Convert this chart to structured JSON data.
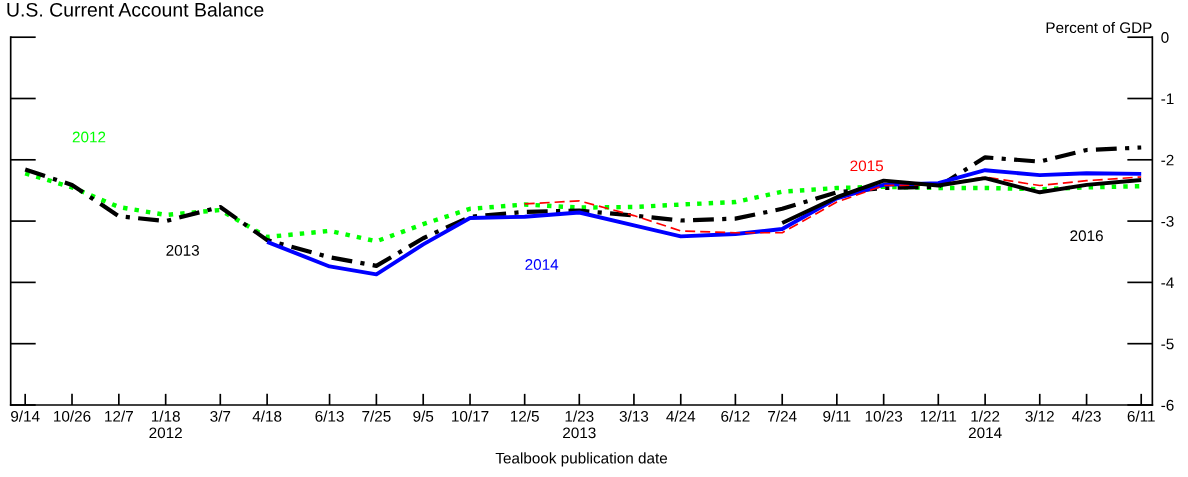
{
  "chart_data": {
    "type": "line",
    "title": "U.S. Current Account Balance",
    "ylabel": "Percent of GDP",
    "xlabel": "Tealbook publication date",
    "x": [
      "2011-09-14",
      "2011-10-26",
      "2011-12-07",
      "2012-01-18",
      "2012-03-07",
      "2012-04-18",
      "2012-06-13",
      "2012-07-25",
      "2012-09-05",
      "2012-10-17",
      "2012-12-05",
      "2013-01-23",
      "2013-03-13",
      "2013-04-24",
      "2013-06-12",
      "2013-07-24",
      "2013-09-11",
      "2013-10-23",
      "2013-12-11",
      "2014-01-22",
      "2014-03-12",
      "2014-04-23",
      "2014-06-11"
    ],
    "series": [
      {
        "name": "2012",
        "color": "#00ff00",
        "line_style": "dotted",
        "values": [
          -2.22,
          -2.45,
          -2.77,
          -2.9,
          -2.82,
          -3.26,
          -3.16,
          -3.33,
          -3.05,
          -2.8,
          -2.73,
          -2.78,
          -2.77,
          -2.73,
          -2.69,
          -2.52,
          -2.46,
          -2.44,
          -2.46,
          -2.46,
          -2.48,
          -2.45,
          -2.43
        ]
      },
      {
        "name": "2013",
        "color": "#000000",
        "line_style": "dashdot",
        "values": [
          -2.16,
          -2.41,
          -2.92,
          -3.0,
          -2.77,
          -3.31,
          -3.59,
          -3.73,
          -3.28,
          -2.93,
          -2.85,
          -2.83,
          -2.91,
          -2.99,
          -2.96,
          -2.8,
          -2.53,
          -2.46,
          -2.44,
          -1.96,
          -2.03,
          -1.84,
          -1.8
        ]
      },
      {
        "name": "2014",
        "color": "#0000ff",
        "line_style": "solid",
        "values": [
          null,
          null,
          null,
          null,
          null,
          -3.34,
          -3.74,
          -3.87,
          -3.38,
          -2.95,
          -2.93,
          -2.86,
          -3.07,
          -3.25,
          -3.21,
          -3.13,
          -2.63,
          -2.41,
          -2.38,
          -2.17,
          -2.25,
          -2.22,
          -2.23
        ]
      },
      {
        "name": "2015",
        "color": "#ff0000",
        "line_style": "dashed",
        "values": [
          null,
          null,
          null,
          null,
          null,
          null,
          null,
          null,
          null,
          null,
          -2.72,
          -2.67,
          -2.91,
          -3.16,
          -3.19,
          -3.19,
          -2.69,
          -2.42,
          -2.41,
          -2.28,
          -2.42,
          -2.34,
          -2.28
        ]
      },
      {
        "name": "2016",
        "color": "#000000",
        "line_style": "solid",
        "values": [
          null,
          null,
          null,
          null,
          null,
          null,
          null,
          null,
          null,
          null,
          null,
          null,
          null,
          null,
          null,
          -3.03,
          -2.61,
          -2.34,
          -2.42,
          -2.3,
          -2.53,
          -2.41,
          -2.33
        ]
      }
    ],
    "xlim": [
      "2011-09-01",
      "2014-06-21"
    ],
    "xticks": [
      {
        "value": "2011-09-14",
        "label": "9/14"
      },
      {
        "value": "2011-10-26",
        "label": "10/26"
      },
      {
        "value": "2011-12-07",
        "label": "12/7"
      },
      {
        "value": "2012-01-18",
        "label": "1/18\n2012"
      },
      {
        "value": "2012-03-07",
        "label": "3/7"
      },
      {
        "value": "2012-04-18",
        "label": "4/18"
      },
      {
        "value": "2012-06-13",
        "label": "6/13"
      },
      {
        "value": "2012-07-25",
        "label": "7/25"
      },
      {
        "value": "2012-09-05",
        "label": "9/5"
      },
      {
        "value": "2012-10-17",
        "label": "10/17"
      },
      {
        "value": "2012-12-05",
        "label": "12/5"
      },
      {
        "value": "2013-01-23",
        "label": "1/23\n2013"
      },
      {
        "value": "2013-03-13",
        "label": "3/13"
      },
      {
        "value": "2013-04-24",
        "label": "4/24"
      },
      {
        "value": "2013-06-12",
        "label": "6/12"
      },
      {
        "value": "2013-07-24",
        "label": "7/24"
      },
      {
        "value": "2013-09-11",
        "label": "9/11"
      },
      {
        "value": "2013-10-23",
        "label": "10/23"
      },
      {
        "value": "2013-12-11",
        "label": "12/11"
      },
      {
        "value": "2014-01-22",
        "label": "1/22\n2014"
      },
      {
        "value": "2014-03-12",
        "label": "3/12"
      },
      {
        "value": "2014-04-23",
        "label": "4/23"
      },
      {
        "value": "2014-06-11",
        "label": "6/11"
      }
    ],
    "ylim": [
      -6,
      0
    ],
    "yticks": [
      -6,
      -5,
      -4,
      -3,
      -2,
      -1,
      0
    ],
    "grid": false,
    "legend": false,
    "marker": "none"
  }
}
